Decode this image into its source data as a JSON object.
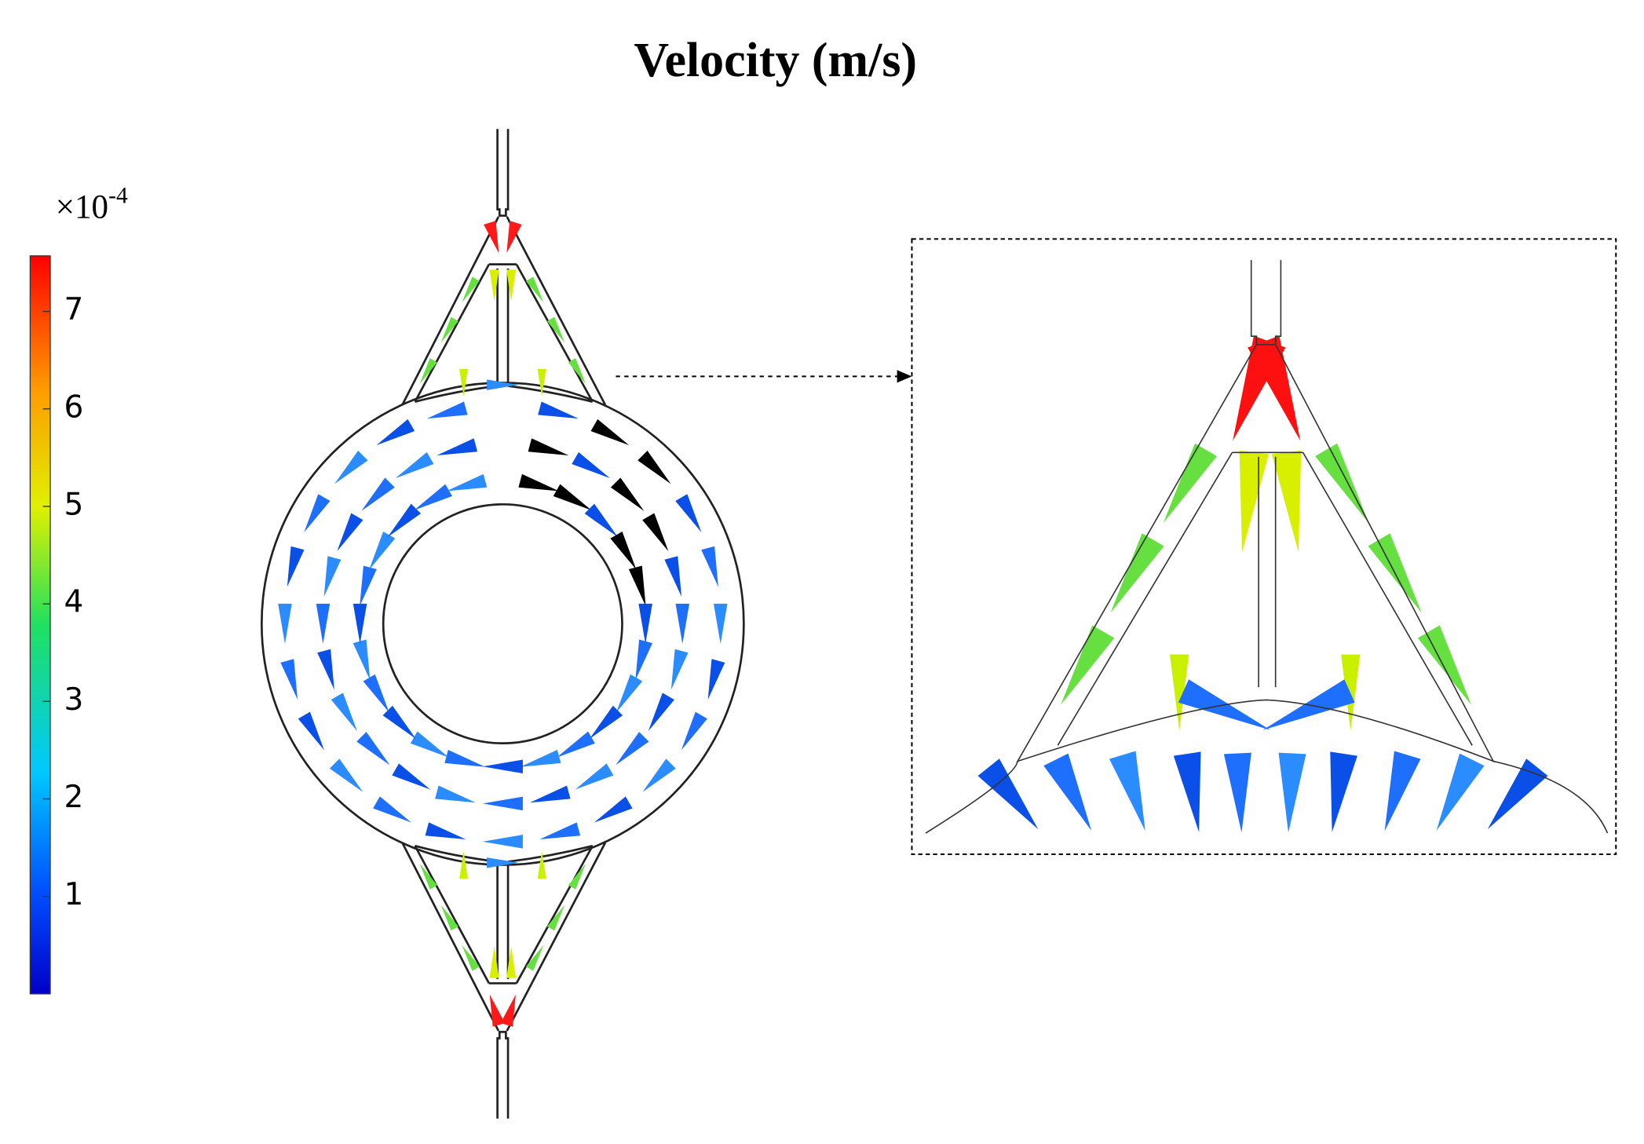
{
  "title": "Velocity (m/s)",
  "colorbar": {
    "multiplier_base": "×10",
    "multiplier_exponent": "-4",
    "lim": [
      0,
      7.57
    ],
    "ticks": [
      1,
      2,
      3,
      4,
      5,
      6,
      7
    ]
  }
}
